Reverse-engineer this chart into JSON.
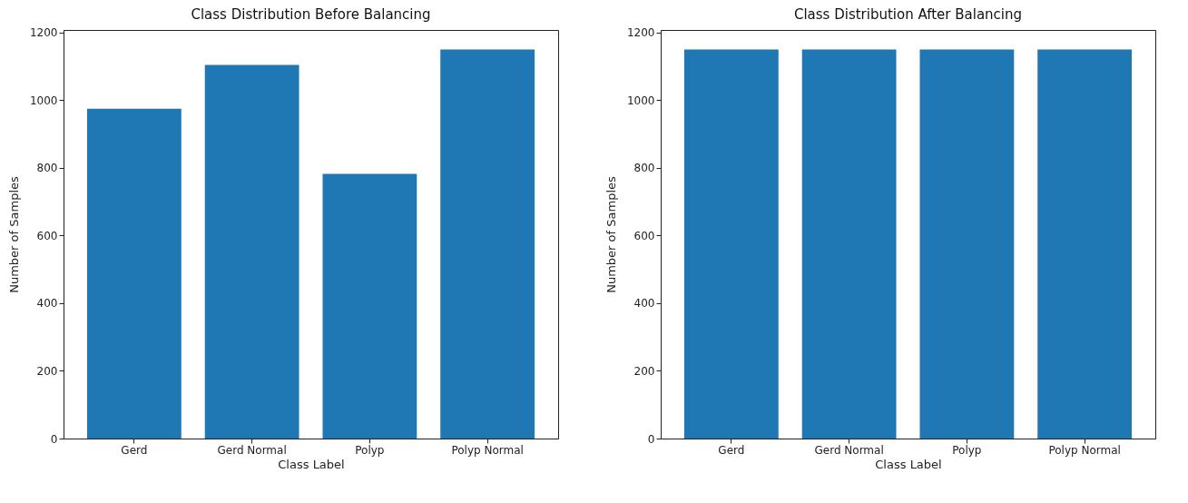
{
  "chart_data": [
    {
      "type": "bar",
      "title": "Class Distribution Before Balancing",
      "xlabel": "Class Label",
      "ylabel": "Number of Samples",
      "categories": [
        "Gerd",
        "Gerd Normal",
        "Polyp",
        "Polyp Normal"
      ],
      "values": [
        974,
        1104,
        782,
        1149
      ],
      "color": "#1f77b4",
      "ylim": [
        0,
        1207
      ],
      "yticks": [
        0,
        200,
        400,
        600,
        800,
        1000,
        1200
      ],
      "grid": false
    },
    {
      "type": "bar",
      "title": "Class Distribution After Balancing",
      "xlabel": "Class Label",
      "ylabel": "Number of Samples",
      "categories": [
        "Gerd",
        "Gerd Normal",
        "Polyp",
        "Polyp Normal"
      ],
      "values": [
        1149,
        1149,
        1149,
        1149
      ],
      "color": "#1f77b4",
      "ylim": [
        0,
        1207
      ],
      "yticks": [
        0,
        200,
        400,
        600,
        800,
        1000,
        1200
      ],
      "grid": false
    }
  ]
}
